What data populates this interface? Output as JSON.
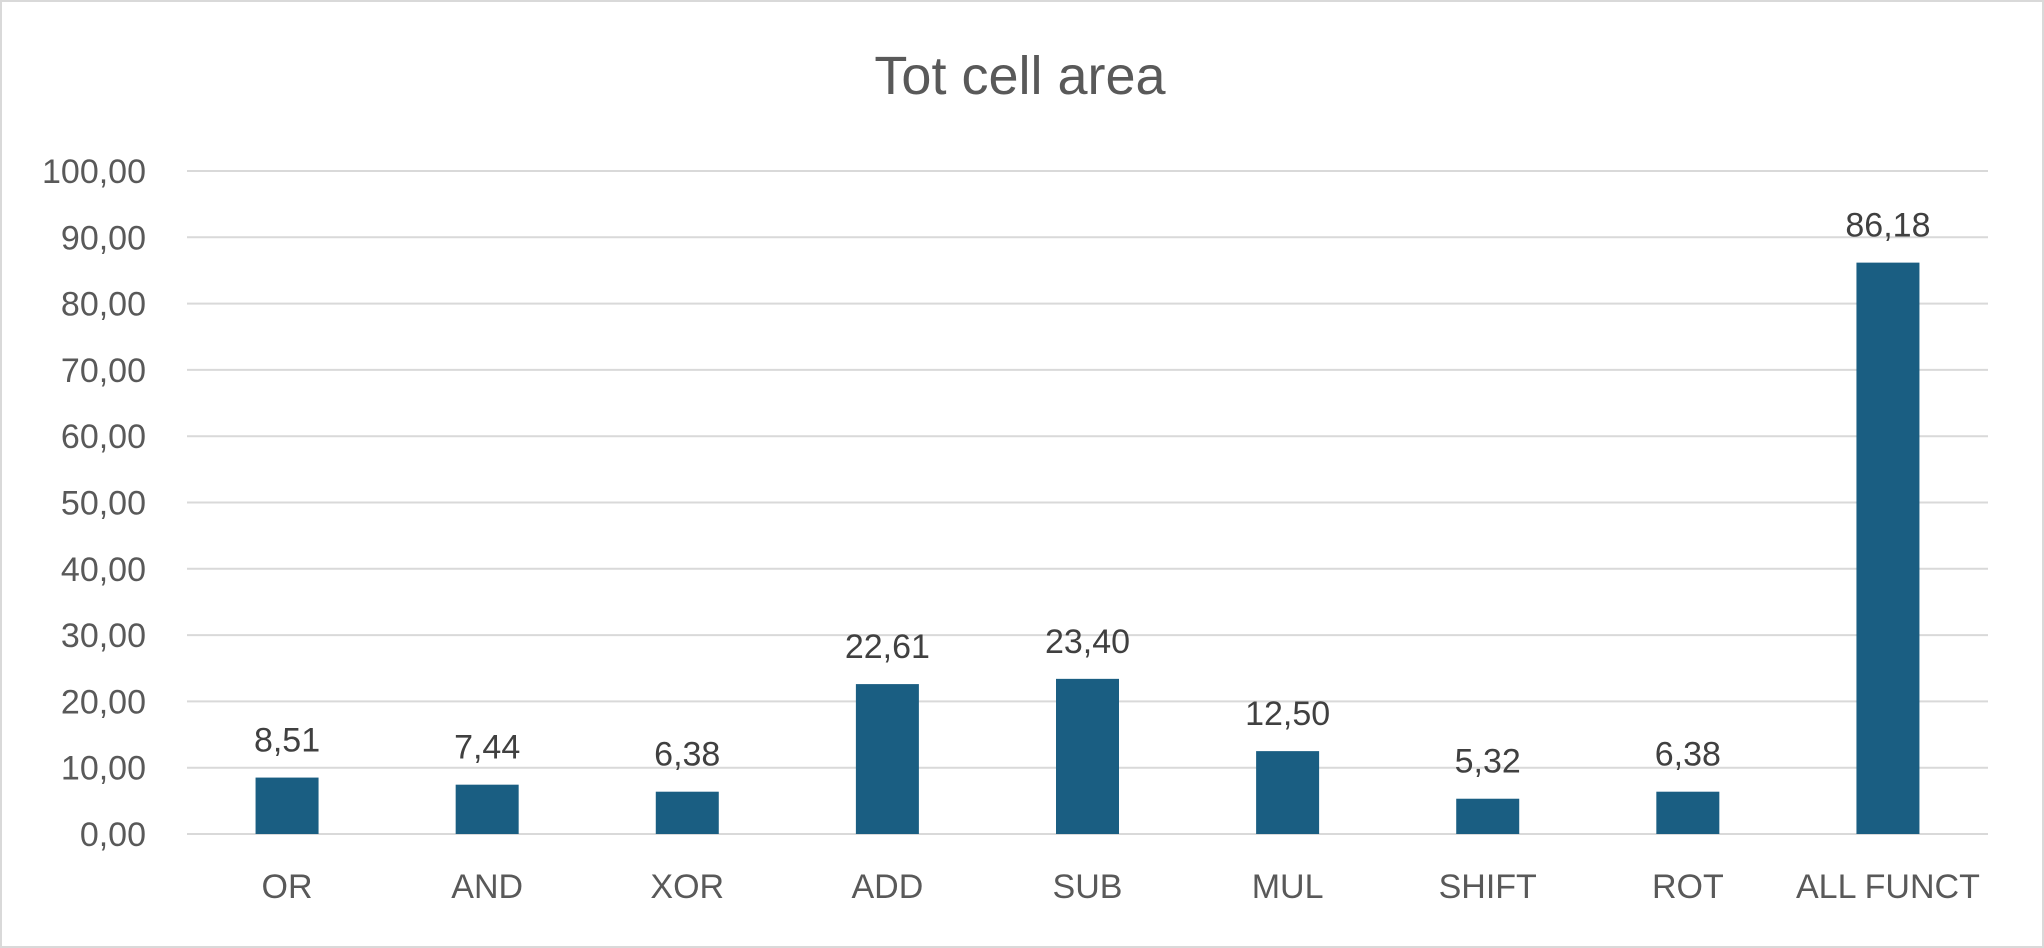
{
  "chart_data": {
    "type": "bar",
    "title": "Tot cell area",
    "xlabel": "",
    "ylabel": "",
    "categories": [
      "OR",
      "AND",
      "XOR",
      "ADD",
      "SUB",
      "MUL",
      "SHIFT",
      "ROT",
      "ALL FUNCT"
    ],
    "values": [
      8.51,
      7.44,
      6.38,
      22.61,
      23.4,
      12.5,
      5.32,
      6.38,
      86.18
    ],
    "data_labels": [
      "8,51",
      "7,44",
      "6,38",
      "22,61",
      "23,40",
      "12,50",
      "5,32",
      "6,38",
      "86,18"
    ],
    "ylim": [
      0,
      100
    ],
    "yticks": [
      0,
      10,
      20,
      30,
      40,
      50,
      60,
      70,
      80,
      90,
      100
    ],
    "ytick_labels": [
      "0,00",
      "10,00",
      "20,00",
      "30,00",
      "40,00",
      "50,00",
      "60,00",
      "70,00",
      "80,00",
      "90,00",
      "100,00"
    ],
    "grid": true,
    "legend": "none",
    "bar_color": "#1a5e82"
  }
}
